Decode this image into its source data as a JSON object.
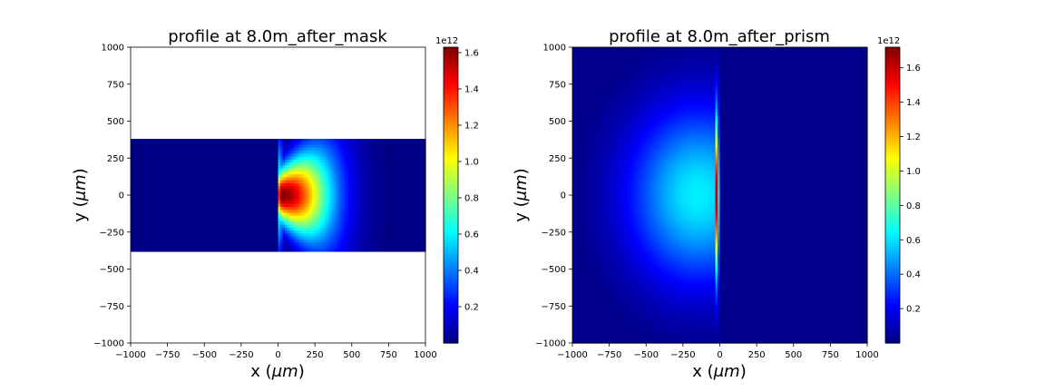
{
  "chart_data": [
    {
      "type": "heatmap",
      "title": "profile at 8.0m_after_mask",
      "xlabel_var": "x (",
      "xlabel_unit": "μm",
      "xlabel_close": ")",
      "ylabel_var": "y (",
      "ylabel_unit": "μm",
      "ylabel_close": ")",
      "xlim": [
        -1000,
        1000
      ],
      "ylim": [
        -1000,
        1000
      ],
      "xticks": [
        -1000,
        -750,
        -500,
        -250,
        0,
        250,
        500,
        750,
        1000
      ],
      "yticks": [
        -1000,
        -750,
        -500,
        -250,
        0,
        250,
        500,
        750,
        1000
      ],
      "colormap": "jet",
      "colorbar": {
        "vmin": 0,
        "vmax": 1.63,
        "ticks": [
          0.2,
          0.4,
          0.6,
          0.8,
          1.0,
          1.2,
          1.4,
          1.6
        ],
        "tick_labels": [
          "0.2",
          "0.4",
          "0.6",
          "0.8",
          "1.0",
          "1.2",
          "1.4",
          "1.6"
        ],
        "exponent_label": "1e12"
      },
      "field": {
        "kind": "mask",
        "aperture_y": [
          -380,
          380
        ],
        "peak_x": 20,
        "edge_x": 0,
        "peak_value": 1.63,
        "background_value": 0.01
      }
    },
    {
      "type": "heatmap",
      "title": "profile at 8.0m_after_prism",
      "xlabel_var": "x (",
      "xlabel_unit": "μm",
      "xlabel_close": ")",
      "ylabel_var": "y (",
      "ylabel_unit": "μm",
      "ylabel_close": ")",
      "xlim": [
        -1000,
        1000
      ],
      "ylim": [
        -1000,
        1000
      ],
      "xticks": [
        -1000,
        -750,
        -500,
        -250,
        0,
        250,
        500,
        750,
        1000
      ],
      "yticks": [
        -1000,
        -750,
        -500,
        -250,
        0,
        250,
        500,
        750,
        1000
      ],
      "colormap": "jet",
      "colorbar": {
        "vmin": 0,
        "vmax": 1.72,
        "ticks": [
          0.2,
          0.4,
          0.6,
          0.8,
          1.0,
          1.2,
          1.4,
          1.6
        ],
        "tick_labels": [
          "0.2",
          "0.4",
          "0.6",
          "0.8",
          "1.0",
          "1.2",
          "1.4",
          "1.6"
        ],
        "exponent_label": "1e12"
      },
      "field": {
        "kind": "prism",
        "center_x": -150,
        "line_x": -20,
        "edge_x": 0,
        "peak_value": 1.72,
        "background_value": 0.02
      }
    }
  ]
}
